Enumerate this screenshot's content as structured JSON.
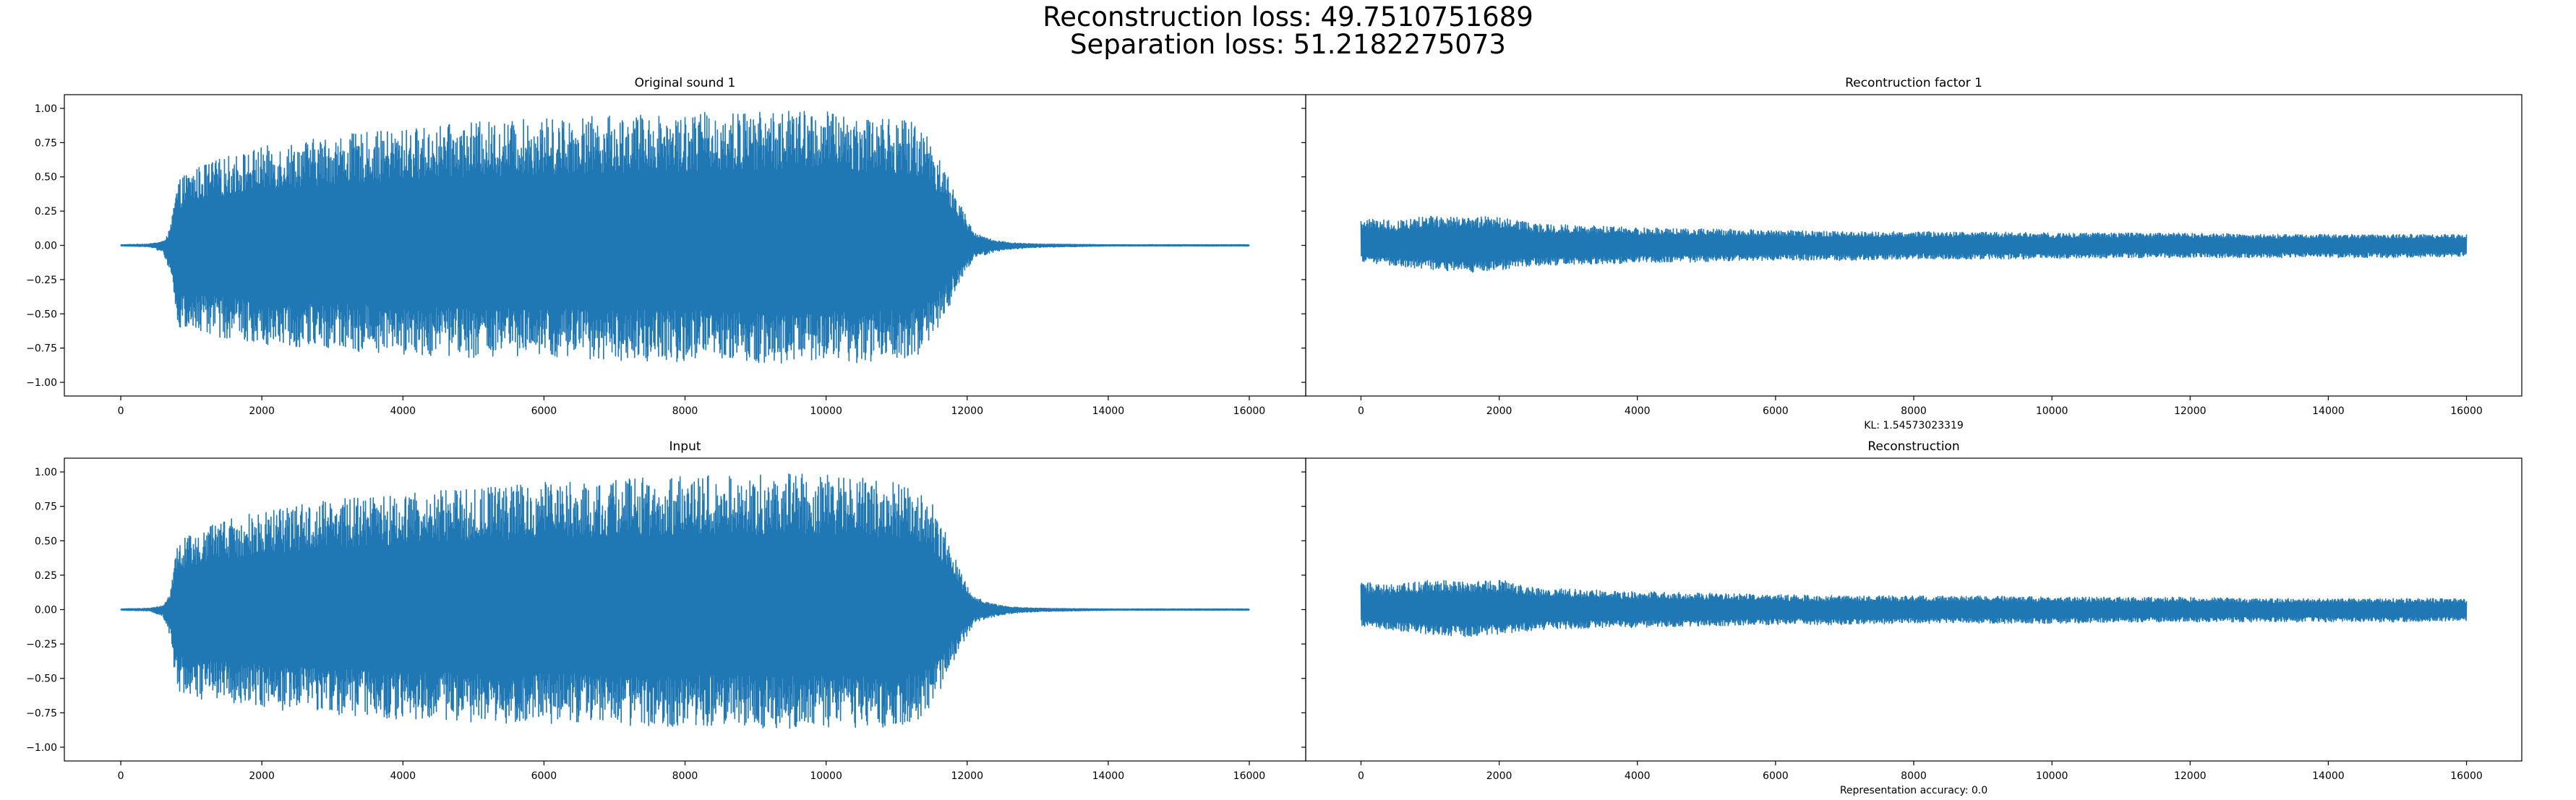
{
  "figure": {
    "suptitle_lines": [
      "Reconstruction loss: 49.7510751689",
      "Separation loss: 51.2182275073"
    ],
    "series_color": "#1f77b4"
  },
  "chart_data": [
    {
      "type": "line",
      "title": "Original sound 1",
      "xlabel": "",
      "ylabel": "",
      "xlim": [
        -800,
        16800
      ],
      "ylim": [
        -1.1,
        1.1
      ],
      "xticks": [
        0,
        2000,
        4000,
        6000,
        8000,
        10000,
        12000,
        14000,
        16000
      ],
      "yticks": [
        1.0,
        0.75,
        0.5,
        0.25,
        0.0,
        -0.25,
        -0.5,
        -0.75,
        -1.0
      ],
      "ytick_labels": [
        "1.00",
        "0.75",
        "0.50",
        "0.25",
        "0.00",
        "−0.25",
        "−0.50",
        "−0.75",
        "−1.00"
      ],
      "grid": false,
      "series_envelope": {
        "x": [
          0,
          400,
          600,
          700,
          750,
          800,
          900,
          1000,
          1200,
          1500,
          2000,
          3000,
          4000,
          5000,
          6000,
          7000,
          8000,
          9000,
          9500,
          10000,
          10500,
          11000,
          11300,
          11500,
          11700,
          11900,
          12100,
          12300,
          12600,
          13000,
          14000,
          15000,
          16000
        ],
        "upper": [
          0.005,
          0.01,
          0.03,
          0.12,
          0.3,
          0.45,
          0.52,
          0.55,
          0.6,
          0.65,
          0.72,
          0.8,
          0.85,
          0.9,
          0.93,
          0.95,
          0.97,
          0.98,
          0.99,
          0.98,
          0.96,
          0.93,
          0.9,
          0.78,
          0.55,
          0.3,
          0.1,
          0.05,
          0.02,
          0.01,
          0.005,
          0.005,
          0.005
        ],
        "lower": [
          -0.005,
          -0.01,
          -0.05,
          -0.2,
          -0.42,
          -0.6,
          -0.63,
          -0.64,
          -0.66,
          -0.68,
          -0.72,
          -0.76,
          -0.8,
          -0.82,
          -0.83,
          -0.84,
          -0.85,
          -0.86,
          -0.87,
          -0.86,
          -0.86,
          -0.85,
          -0.8,
          -0.7,
          -0.5,
          -0.28,
          -0.1,
          -0.06,
          -0.03,
          -0.015,
          -0.005,
          -0.005,
          -0.005
        ]
      }
    },
    {
      "type": "line",
      "title": "Recontruction factor 1",
      "xlabel": "KL: 1.54573023319",
      "ylabel": "",
      "xlim": [
        -800,
        16800
      ],
      "ylim": [
        -1.1,
        1.1
      ],
      "xticks": [
        0,
        2000,
        4000,
        6000,
        8000,
        10000,
        12000,
        14000,
        16000
      ],
      "grid": false,
      "series_envelope": {
        "x": [
          0,
          500,
          1000,
          1500,
          2000,
          2500,
          3000,
          4000,
          5000,
          6000,
          7000,
          8000,
          9000,
          10000,
          11000,
          12000,
          13000,
          14000,
          15000,
          16000
        ],
        "upper": [
          0.2,
          0.18,
          0.22,
          0.2,
          0.22,
          0.16,
          0.15,
          0.13,
          0.12,
          0.11,
          0.1,
          0.1,
          0.1,
          0.09,
          0.09,
          0.09,
          0.08,
          0.08,
          0.08,
          0.08
        ],
        "lower": [
          -0.12,
          -0.15,
          -0.18,
          -0.2,
          -0.18,
          -0.15,
          -0.14,
          -0.13,
          -0.12,
          -0.11,
          -0.11,
          -0.1,
          -0.1,
          -0.1,
          -0.09,
          -0.09,
          -0.09,
          -0.09,
          -0.09,
          -0.08
        ]
      }
    },
    {
      "type": "line",
      "title": "Input",
      "xlabel": "",
      "ylabel": "",
      "xlim": [
        -800,
        16800
      ],
      "ylim": [
        -1.1,
        1.1
      ],
      "xticks": [
        0,
        2000,
        4000,
        6000,
        8000,
        10000,
        12000,
        14000,
        16000
      ],
      "yticks": [
        1.0,
        0.75,
        0.5,
        0.25,
        0.0,
        -0.25,
        -0.5,
        -0.75,
        -1.0
      ],
      "ytick_labels": [
        "1.00",
        "0.75",
        "0.50",
        "0.25",
        "0.00",
        "−0.25",
        "−0.50",
        "−0.75",
        "−1.00"
      ],
      "grid": false,
      "series_envelope": {
        "x": [
          0,
          400,
          600,
          700,
          750,
          800,
          900,
          1000,
          1200,
          1500,
          2000,
          3000,
          4000,
          5000,
          6000,
          7000,
          8000,
          9000,
          9500,
          10000,
          10500,
          11000,
          11300,
          11500,
          11700,
          11900,
          12100,
          12300,
          12600,
          13000,
          14000,
          15000,
          16000
        ],
        "upper": [
          0.005,
          0.01,
          0.03,
          0.12,
          0.3,
          0.45,
          0.52,
          0.55,
          0.6,
          0.65,
          0.72,
          0.8,
          0.85,
          0.9,
          0.93,
          0.95,
          0.97,
          0.98,
          0.99,
          0.98,
          0.96,
          0.93,
          0.9,
          0.78,
          0.55,
          0.3,
          0.1,
          0.05,
          0.02,
          0.01,
          0.005,
          0.005,
          0.005
        ],
        "lower": [
          -0.005,
          -0.01,
          -0.05,
          -0.2,
          -0.42,
          -0.6,
          -0.63,
          -0.64,
          -0.66,
          -0.68,
          -0.72,
          -0.76,
          -0.8,
          -0.82,
          -0.83,
          -0.84,
          -0.85,
          -0.86,
          -0.87,
          -0.86,
          -0.86,
          -0.85,
          -0.8,
          -0.7,
          -0.5,
          -0.28,
          -0.1,
          -0.06,
          -0.03,
          -0.015,
          -0.005,
          -0.005,
          -0.005
        ]
      }
    },
    {
      "type": "line",
      "title": "Reconstruction",
      "xlabel": "Representation accuracy: 0.0",
      "ylabel": "",
      "xlim": [
        -800,
        16800
      ],
      "ylim": [
        -1.1,
        1.1
      ],
      "xticks": [
        0,
        2000,
        4000,
        6000,
        8000,
        10000,
        12000,
        14000,
        16000
      ],
      "grid": false,
      "series_envelope": {
        "x": [
          0,
          500,
          1000,
          1500,
          2000,
          2500,
          3000,
          4000,
          5000,
          6000,
          7000,
          8000,
          9000,
          10000,
          11000,
          12000,
          13000,
          14000,
          15000,
          16000
        ],
        "upper": [
          0.2,
          0.18,
          0.22,
          0.2,
          0.22,
          0.16,
          0.15,
          0.13,
          0.12,
          0.11,
          0.1,
          0.1,
          0.1,
          0.09,
          0.09,
          0.09,
          0.08,
          0.08,
          0.08,
          0.08
        ],
        "lower": [
          -0.12,
          -0.15,
          -0.18,
          -0.2,
          -0.18,
          -0.15,
          -0.14,
          -0.13,
          -0.12,
          -0.11,
          -0.11,
          -0.1,
          -0.1,
          -0.1,
          -0.09,
          -0.09,
          -0.09,
          -0.09,
          -0.09,
          -0.08
        ]
      }
    }
  ]
}
